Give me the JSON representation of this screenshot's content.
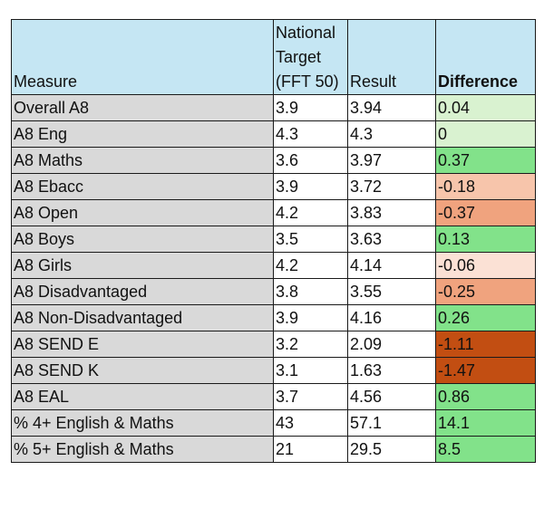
{
  "headers": {
    "measure": "Measure",
    "target": "National Target (FFT 50)",
    "result": "Result",
    "difference": "Difference"
  },
  "rows": [
    {
      "measure": "Overall A8",
      "target": "3.9",
      "result": "3.94",
      "difference": "0.04",
      "diff_color": "#d9f2d0"
    },
    {
      "measure": "A8 Eng",
      "target": "4.3",
      "result": "4.3",
      "difference": "0",
      "diff_color": "#d9f2d0"
    },
    {
      "measure": "A8 Maths",
      "target": "3.6",
      "result": "3.97",
      "difference": "0.37",
      "diff_color": "#82e28a"
    },
    {
      "measure": "A8 Ebacc",
      "target": "3.9",
      "result": "3.72",
      "difference": "-0.18",
      "diff_color": "#f7c5ab"
    },
    {
      "measure": "A8 Open",
      "target": "4.2",
      "result": "3.83",
      "difference": "-0.37",
      "diff_color": "#f0a37e"
    },
    {
      "measure": "A8 Boys",
      "target": "3.5",
      "result": "3.63",
      "difference": "0.13",
      "diff_color": "#82e28a"
    },
    {
      "measure": "A8 Girls",
      "target": "4.2",
      "result": "4.14",
      "difference": "-0.06",
      "diff_color": "#fbe1d5"
    },
    {
      "measure": "A8 Disadvantaged",
      "target": "3.8",
      "result": "3.55",
      "difference": "-0.25",
      "diff_color": "#f0a37e"
    },
    {
      "measure": "A8 Non-Disadvantaged",
      "target": "3.9",
      "result": "4.16",
      "difference": "0.26",
      "diff_color": "#82e28a"
    },
    {
      "measure": "A8 SEND E",
      "target": "3.2",
      "result": "2.09",
      "difference": "-1.11",
      "diff_color": "#c24e12"
    },
    {
      "measure": "A8 SEND K",
      "target": "3.1",
      "result": "1.63",
      "difference": "-1.47",
      "diff_color": "#c24e12"
    },
    {
      "measure": "A8 EAL",
      "target": "3.7",
      "result": "4.56",
      "difference": "0.86",
      "diff_color": "#82e28a"
    },
    {
      "measure": "% 4+ English & Maths",
      "target": "43",
      "result": "57.1",
      "difference": "14.1",
      "diff_color": "#82e28a"
    },
    {
      "measure": "% 5+ English & Maths",
      "target": "21",
      "result": "29.5",
      "difference": "8.5",
      "diff_color": "#82e28a"
    }
  ]
}
